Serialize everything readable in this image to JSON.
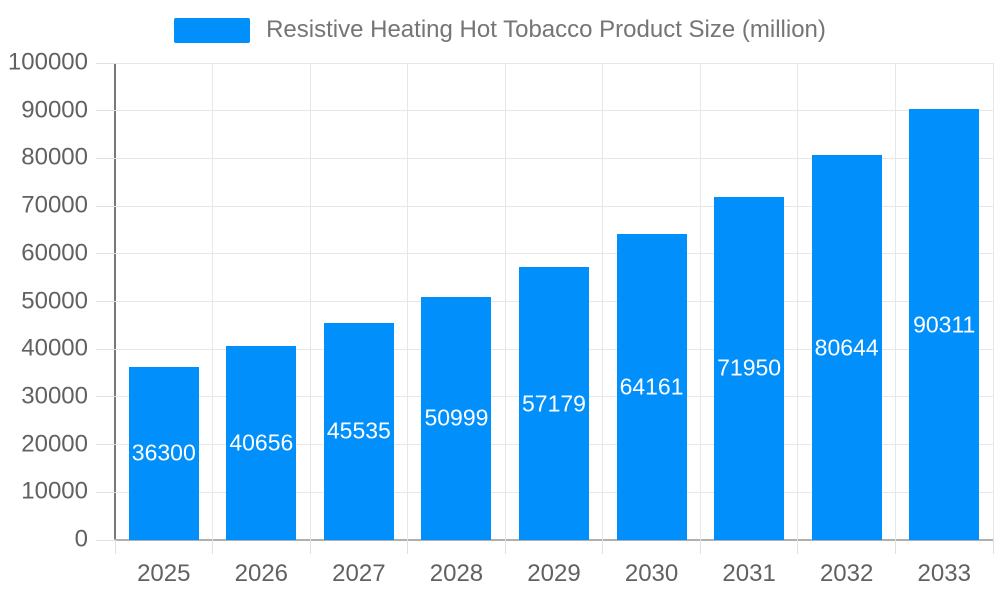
{
  "chart_data": {
    "type": "bar",
    "title": "Resistive Heating Hot Tobacco Product Size (million)",
    "categories": [
      "2025",
      "2026",
      "2027",
      "2028",
      "2029",
      "2030",
      "2031",
      "2032",
      "2033"
    ],
    "series": [
      {
        "name": "Resistive Heating Hot Tobacco Product Size (million)",
        "values": [
          36300,
          40656,
          45535,
          50999,
          57179,
          64161,
          71950,
          80644,
          90311
        ]
      }
    ],
    "xlabel": "",
    "ylabel": "",
    "ylim": [
      0,
      100000
    ],
    "ytick_step": 10000,
    "yticks": [
      0,
      10000,
      20000,
      30000,
      40000,
      50000,
      60000,
      70000,
      80000,
      90000,
      100000
    ],
    "grid": true,
    "legend_position": "top",
    "value_labels": "inside-center",
    "colors": {
      "bar": "#008ffb",
      "grid_line": "#e7e7e7",
      "tick_mark": "#e0e0e0",
      "y_axis_line": "#787878",
      "x_axis_line": "#b0b0b0",
      "tick_label": "#616161",
      "legend_label": "#757575",
      "value_label": "#ffffff",
      "background": "#ffffff"
    }
  }
}
